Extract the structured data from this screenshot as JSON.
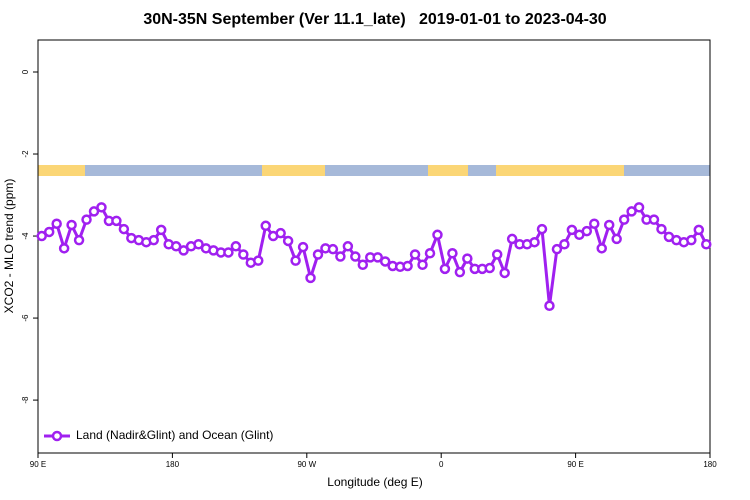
{
  "chart_data": {
    "type": "line",
    "title": "30N-35N September (Ver 11.1_late)   2019-01-01 to 2023-04-30",
    "xlabel": "Longitude (deg E)",
    "ylabel": "XCO2 - MLO trend (ppm)",
    "x": [
      92.5,
      97.5,
      102.5,
      107.5,
      112.5,
      117.5,
      122.5,
      127.5,
      132.5,
      137.5,
      142.5,
      147.5,
      152.5,
      157.5,
      162.5,
      167.5,
      172.5,
      177.5,
      182.5,
      187.5,
      192.5,
      197.5,
      202.5,
      207.5,
      212.5,
      217.5,
      222.5,
      227.5,
      232.5,
      237.5,
      242.5,
      247.5,
      252.5,
      257.5,
      262.5,
      267.5,
      272.5,
      277.5,
      282.5,
      287.5,
      292.5,
      297.5,
      302.5,
      307.5,
      312.5,
      317.5,
      322.5,
      327.5,
      332.5,
      337.5,
      342.5,
      347.5,
      352.5,
      357.5,
      362.5,
      367.5,
      372.5,
      377.5,
      382.5,
      387.5,
      392.5,
      397.5,
      402.5,
      407.5,
      412.5,
      417.5,
      422.5,
      427.5,
      432.5,
      437.5,
      442.5,
      447.5,
      452.5,
      457.5,
      462.5,
      467.5,
      472.5,
      477.5,
      482.5,
      487.5,
      492.5,
      497.5,
      502.5,
      507.5,
      512.5,
      517.5,
      522.5,
      527.5,
      532.5,
      537.5
    ],
    "series": [
      {
        "name": "Land (Nadir&Glint) and Ocean (Glint)",
        "color": "#a020f0",
        "values": [
          -4.0,
          -3.9,
          -3.7,
          -4.3,
          -3.73,
          -4.1,
          -3.6,
          -3.4,
          -3.3,
          -3.63,
          -3.63,
          -3.83,
          -4.05,
          -4.1,
          -4.15,
          -4.1,
          -3.85,
          -4.2,
          -4.25,
          -4.35,
          -4.25,
          -4.2,
          -4.3,
          -4.35,
          -4.4,
          -4.4,
          -4.25,
          -4.45,
          -4.65,
          -4.6,
          -3.75,
          -4.0,
          -3.93,
          -4.12,
          -4.6,
          -4.27,
          -5.02,
          -4.45,
          -4.3,
          -4.32,
          -4.5,
          -4.25,
          -4.5,
          -4.7,
          -4.52,
          -4.52,
          -4.62,
          -4.73,
          -4.75,
          -4.73,
          -4.45,
          -4.7,
          -4.42,
          -3.97,
          -4.8,
          -4.42,
          -4.88,
          -4.55,
          -4.8,
          -4.8,
          -4.78,
          -4.45,
          -4.9,
          -4.07,
          -4.2,
          -4.2,
          -4.15,
          -3.83,
          -5.7,
          -4.32,
          -4.2,
          -3.85,
          -3.97,
          -3.88,
          -3.7,
          -4.3,
          -3.73,
          -4.07,
          -3.6,
          -3.4,
          -3.3,
          -3.6,
          -3.6,
          -3.83,
          -4.02,
          -4.1,
          -4.15,
          -4.1,
          -3.85,
          -4.2
        ]
      }
    ],
    "xlim": [
      90,
      540
    ],
    "xticks": [
      {
        "value": 90,
        "label": "90 E"
      },
      {
        "value": 180,
        "label": "180"
      },
      {
        "value": 270,
        "label": "90 W"
      },
      {
        "value": 360,
        "label": "0"
      },
      {
        "value": 450,
        "label": "90 E"
      },
      {
        "value": 540,
        "label": "180"
      }
    ],
    "ylim": [
      -9.29,
      0.78
    ],
    "yticks": [
      0,
      -2,
      -4,
      -6,
      -8
    ],
    "legend": "bottomleft",
    "grid": false
  }
}
